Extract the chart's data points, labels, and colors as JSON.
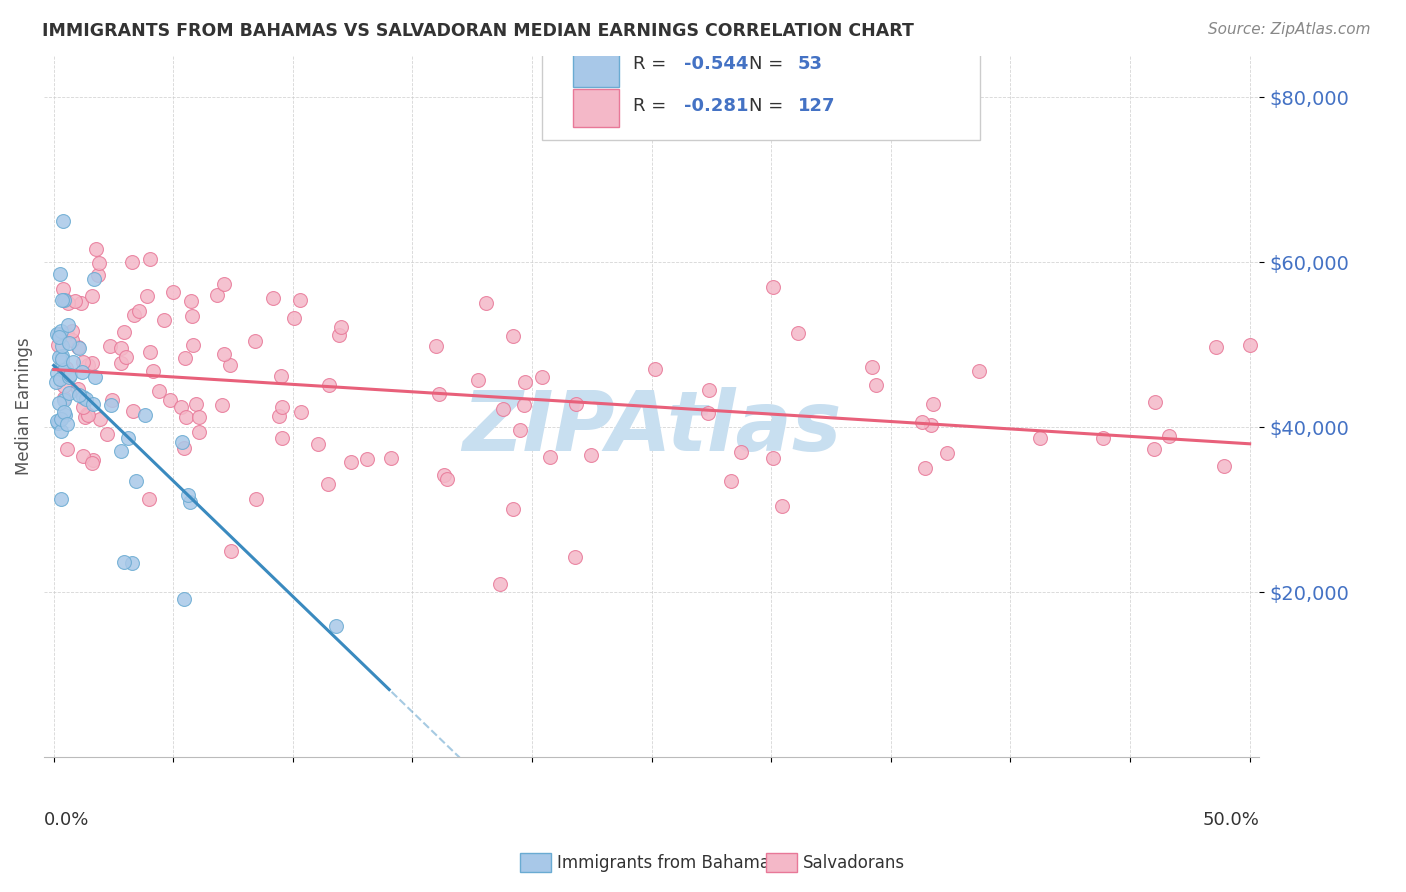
{
  "title": "IMMIGRANTS FROM BAHAMAS VS SALVADORAN MEDIAN EARNINGS CORRELATION CHART",
  "source": "Source: ZipAtlas.com",
  "ylabel": "Median Earnings",
  "y_ticks": [
    20000,
    40000,
    60000,
    80000
  ],
  "y_tick_labels": [
    "$20,000",
    "$40,000",
    "$60,000",
    "$80,000"
  ],
  "y_range": [
    0,
    85000
  ],
  "x_range": [
    0.0,
    0.5
  ],
  "color_blue": "#a8c8e8",
  "color_blue_edge": "#6aabd2",
  "color_pink": "#f4b8c8",
  "color_pink_edge": "#e87898",
  "color_blue_line": "#3a8abf",
  "color_pink_line": "#e8607a",
  "watermark_color": "#c8dff0",
  "background_color": "#ffffff",
  "grid_color": "#cccccc",
  "legend_text_color": "#4472C4",
  "title_color": "#333333",
  "ytick_color": "#4472C4",
  "source_color": "#888888"
}
